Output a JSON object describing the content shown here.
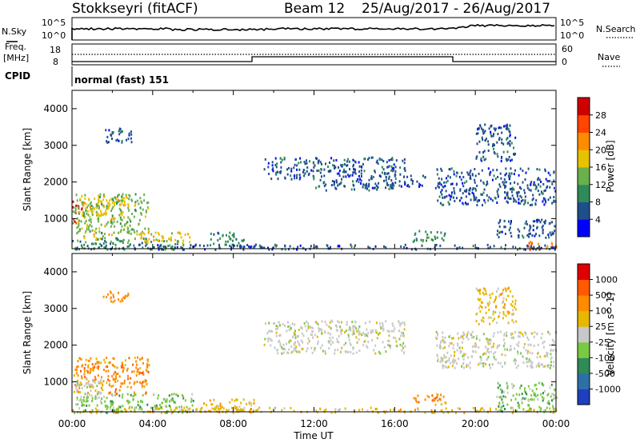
{
  "header": {
    "title": "Stokkseyri (fitACF)",
    "beam": "Beam 12",
    "date_range": "25/Aug/2017 - 26/Aug/2017"
  },
  "nsky_panel": {
    "left_label": "N.Sky",
    "right_label": "N.Search",
    "left_ticks": [
      "10^5",
      "10^0"
    ],
    "right_ticks": [
      "10^5",
      "10^0"
    ]
  },
  "freq_panel": {
    "left_label_line1": "Freq.",
    "left_label_line2": "[MHz]",
    "right_label": "Nave",
    "left_ticks": [
      "18",
      "8"
    ],
    "right_ticks": [
      "60",
      "0"
    ]
  },
  "cpid": {
    "label": "CPID",
    "value": "normal (fast) 151"
  },
  "colors": {
    "power": [
      "#0000ff",
      "#1f4e8c",
      "#2e8b57",
      "#6ab04c",
      "#e6c200",
      "#ff8c00",
      "#ff4500",
      "#d00000"
    ],
    "velocity": [
      "#1f3fbf",
      "#2e6fa8",
      "#2e8b57",
      "#7ac943",
      "#c8c8c8",
      "#e6b800",
      "#ff8c00",
      "#ff5a00",
      "#e00000"
    ]
  },
  "chart_data": [
    {
      "type": "heatmap",
      "name": "power",
      "xlabel": "",
      "ylabel": "Slant Range [km]",
      "colorbar_label": "Power [dB]",
      "colorbar_ticks": [
        "28",
        "24",
        "20",
        "16",
        "12",
        "8",
        "4"
      ],
      "ylim": [
        180,
        4500
      ],
      "y_ticks": [
        1000,
        2000,
        3000,
        4000
      ],
      "xlim": [
        0,
        24
      ],
      "regions": [
        {
          "t0": 0.0,
          "t1": 0.5,
          "r0": 900,
          "r1": 1500,
          "c": 6
        },
        {
          "t0": 0.0,
          "t1": 3.8,
          "r0": 600,
          "r1": 1700,
          "c": 3
        },
        {
          "t0": 0.5,
          "t1": 2.8,
          "r0": 1000,
          "r1": 1600,
          "c": 4
        },
        {
          "t0": 0.0,
          "t1": 5.5,
          "r0": 180,
          "r1": 500,
          "c": 2
        },
        {
          "t0": 0.5,
          "t1": 2.0,
          "r0": 450,
          "r1": 600,
          "c": 4
        },
        {
          "t0": 3.0,
          "t1": 5.8,
          "r0": 350,
          "r1": 650,
          "c": 4
        },
        {
          "t0": 1.5,
          "t1": 3.0,
          "r0": 3100,
          "r1": 3500,
          "c": 1
        },
        {
          "t0": 6.8,
          "t1": 8.5,
          "r0": 300,
          "r1": 650,
          "c": 2
        },
        {
          "t0": 9.5,
          "t1": 12.0,
          "r0": 2100,
          "r1": 2700,
          "c": 1
        },
        {
          "t0": 12.0,
          "t1": 16.5,
          "r0": 1800,
          "r1": 2700,
          "c": 1
        },
        {
          "t0": 15.5,
          "t1": 17.5,
          "r0": 1900,
          "r1": 2200,
          "c": 1
        },
        {
          "t0": 16.8,
          "t1": 18.5,
          "r0": 400,
          "r1": 700,
          "c": 2
        },
        {
          "t0": 18.0,
          "t1": 24.0,
          "r0": 1400,
          "r1": 2400,
          "c": 1
        },
        {
          "t0": 20.0,
          "t1": 22.0,
          "r0": 2600,
          "r1": 3600,
          "c": 1
        },
        {
          "t0": 21.0,
          "t1": 24.0,
          "r0": 500,
          "r1": 1000,
          "c": 1
        },
        {
          "t0": 22.5,
          "t1": 24.0,
          "r0": 180,
          "r1": 400,
          "c": 5
        },
        {
          "t0": 0.0,
          "t1": 24.0,
          "r0": 180,
          "r1": 320,
          "c": 1
        }
      ]
    },
    {
      "type": "heatmap",
      "name": "velocity",
      "xlabel": "Time UT",
      "ylabel": "Slant Range [km]",
      "colorbar_label": "Velocity [m s^-1]",
      "colorbar_ticks": [
        "1000",
        "500",
        "100",
        "25",
        "-25",
        "-100",
        "-500",
        "-1000"
      ],
      "ylim": [
        180,
        4500
      ],
      "y_ticks": [
        1000,
        2000,
        3000,
        4000
      ],
      "xlim": [
        0,
        24
      ],
      "x_ticks": [
        "00:00",
        "04:00",
        "08:00",
        "12:00",
        "16:00",
        "20:00",
        "00:00"
      ],
      "regions": [
        {
          "t0": 0.0,
          "t1": 3.8,
          "r0": 700,
          "r1": 1700,
          "c": 6
        },
        {
          "t0": 0.0,
          "t1": 1.5,
          "r0": 500,
          "r1": 1100,
          "c": 4
        },
        {
          "t0": 1.5,
          "t1": 3.0,
          "r0": 3200,
          "r1": 3500,
          "c": 6
        },
        {
          "t0": 0.0,
          "t1": 6.0,
          "r0": 180,
          "r1": 700,
          "c": 3
        },
        {
          "t0": 6.5,
          "t1": 9.0,
          "r0": 200,
          "r1": 550,
          "c": 5
        },
        {
          "t0": 9.5,
          "t1": 16.5,
          "r0": 1800,
          "r1": 2700,
          "c": 4
        },
        {
          "t0": 16.8,
          "t1": 18.5,
          "r0": 400,
          "r1": 700,
          "c": 6
        },
        {
          "t0": 18.0,
          "t1": 24.0,
          "r0": 1400,
          "r1": 2400,
          "c": 4
        },
        {
          "t0": 20.0,
          "t1": 22.0,
          "r0": 2600,
          "r1": 3600,
          "c": 5
        },
        {
          "t0": 21.0,
          "t1": 24.0,
          "r0": 200,
          "r1": 1000,
          "c": 3
        },
        {
          "t0": 0.0,
          "t1": 24.0,
          "r0": 180,
          "r1": 320,
          "c": 5
        }
      ]
    }
  ]
}
